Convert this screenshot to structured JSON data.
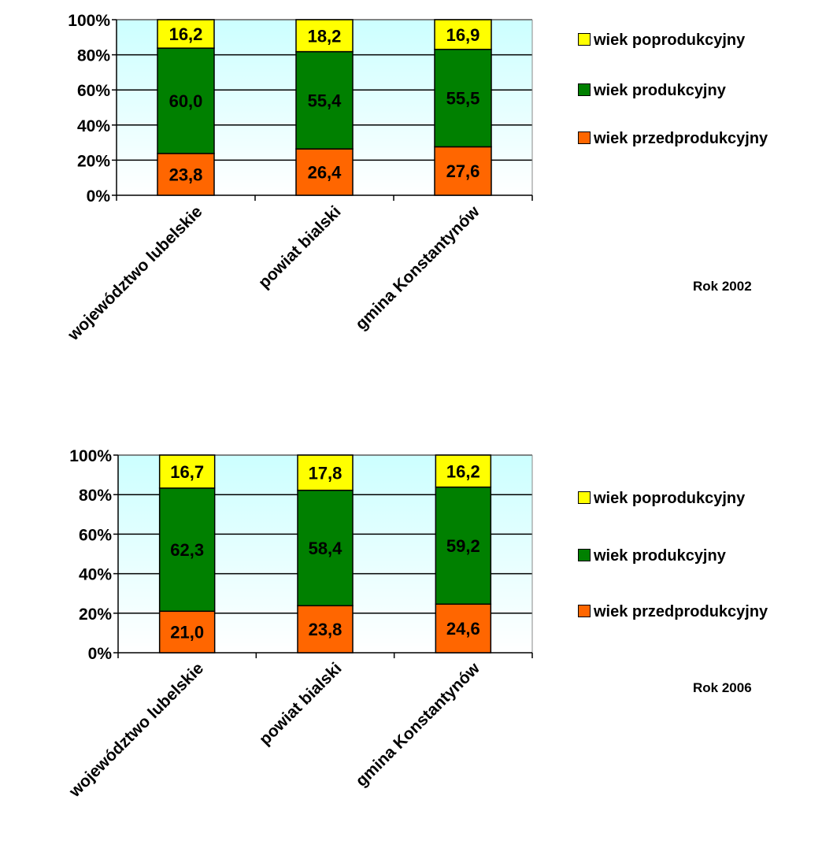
{
  "colors": {
    "poprodukcyjny": "#ffff00",
    "produkcyjny": "#008000",
    "przedprodukcyjny": "#ff6600",
    "plot_top": "#ccffff",
    "plot_bottom": "#ffffff"
  },
  "chart_data": [
    {
      "type": "bar",
      "stacked": true,
      "caption": "Rok 2002",
      "categories": [
        "województwo lubelskie",
        "powiat bialski",
        "gmina Konstantynów"
      ],
      "ylim": [
        0,
        100
      ],
      "y_ticks": [
        "0%",
        "20%",
        "40%",
        "60%",
        "80%",
        "100%"
      ],
      "series": [
        {
          "name": "wiek przedprodukcyjny",
          "color_key": "przedprodukcyjny",
          "values": [
            23.8,
            26.4,
            27.6
          ],
          "labels": [
            "23,8",
            "26,4",
            "27,6"
          ]
        },
        {
          "name": "wiek produkcyjny",
          "color_key": "produkcyjny",
          "values": [
            60.0,
            55.4,
            55.5
          ],
          "labels": [
            "60,0",
            "55,4",
            "55,5"
          ]
        },
        {
          "name": "wiek poprodukcyjny",
          "color_key": "poprodukcyjny",
          "values": [
            16.2,
            18.2,
            16.9
          ],
          "labels": [
            "16,2",
            "18,2",
            "16,9"
          ]
        }
      ],
      "legend": [
        "wiek poprodukcyjny",
        "wiek produkcyjny",
        "wiek przedprodukcyjny"
      ],
      "grid": true
    },
    {
      "type": "bar",
      "stacked": true,
      "caption": "Rok 2006",
      "categories": [
        "województwo lubelskie",
        "powiat bialski",
        "gmina Konstantynów"
      ],
      "ylim": [
        0,
        100
      ],
      "y_ticks": [
        "0%",
        "20%",
        "40%",
        "60%",
        "80%",
        "100%"
      ],
      "series": [
        {
          "name": "wiek przedprodukcyjny",
          "color_key": "przedprodukcyjny",
          "values": [
            21.0,
            23.8,
            24.6
          ],
          "labels": [
            "21,0",
            "23,8",
            "24,6"
          ]
        },
        {
          "name": "wiek produkcyjny",
          "color_key": "produkcyjny",
          "values": [
            62.3,
            58.4,
            59.2
          ],
          "labels": [
            "62,3",
            "58,4",
            "59,2"
          ]
        },
        {
          "name": "wiek poprodukcyjny",
          "color_key": "poprodukcyjny",
          "values": [
            16.7,
            17.8,
            16.2
          ],
          "labels": [
            "16,7",
            "17,8",
            "16,2"
          ]
        }
      ],
      "legend": [
        "wiek poprodukcyjny",
        "wiek produkcyjny",
        "wiek przedprodukcyjny"
      ],
      "grid": true
    }
  ]
}
